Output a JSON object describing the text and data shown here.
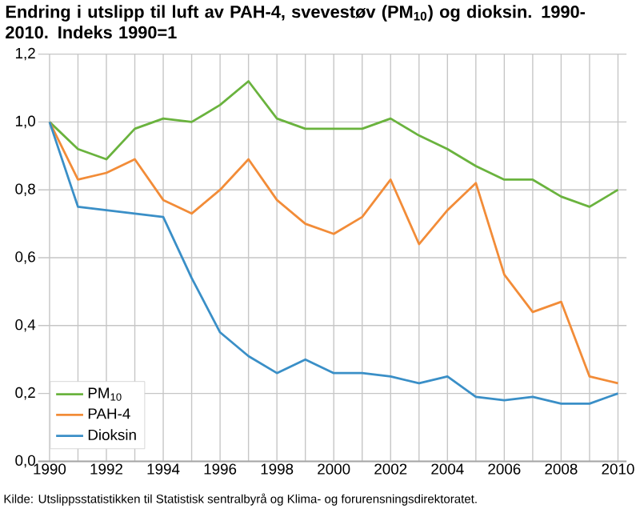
{
  "chart_data": {
    "type": "line",
    "title": "Endring i utslipp til luft av PAH-4, svevestøv (PM$_{10}$) og dioksin. 1990-2010. Indeks 1990=1",
    "x": [
      1990,
      1991,
      1992,
      1993,
      1994,
      1995,
      1996,
      1997,
      1998,
      1999,
      2000,
      2001,
      2002,
      2003,
      2004,
      2005,
      2006,
      2007,
      2008,
      2009,
      2010
    ],
    "series": [
      {
        "name": "PM$_{10}$",
        "color": "#6ab33e",
        "values": [
          1.0,
          0.92,
          0.89,
          0.98,
          1.01,
          1.0,
          1.05,
          1.12,
          1.01,
          0.98,
          0.98,
          0.98,
          1.01,
          0.96,
          0.92,
          0.87,
          0.83,
          0.83,
          0.78,
          0.75,
          0.8
        ]
      },
      {
        "name": "PAH-4",
        "color": "#f28c38",
        "values": [
          1.0,
          0.83,
          0.85,
          0.89,
          0.77,
          0.73,
          0.8,
          0.89,
          0.77,
          0.7,
          0.67,
          0.72,
          0.83,
          0.64,
          0.74,
          0.82,
          0.55,
          0.44,
          0.47,
          0.25,
          0.23
        ]
      },
      {
        "name": "Dioksin",
        "color": "#3a8fc7",
        "values": [
          1.0,
          0.75,
          0.74,
          0.73,
          0.72,
          0.54,
          0.38,
          0.31,
          0.26,
          0.3,
          0.26,
          0.26,
          0.25,
          0.23,
          0.25,
          0.19,
          0.18,
          0.19,
          0.17,
          0.17,
          0.2
        ]
      }
    ],
    "xlim": [
      1989.6,
      2010.3
    ],
    "xticks": [
      1990,
      {
        "value": 1991,
        "label": null
      },
      1992,
      {
        "value": 1993,
        "label": null
      },
      1994,
      {
        "value": 1995,
        "label": null
      },
      1996,
      {
        "value": 1997,
        "label": null
      },
      1998,
      {
        "value": 1999,
        "label": null
      },
      2000,
      {
        "value": 2001,
        "label": null
      },
      2002,
      {
        "value": 2003,
        "label": null
      },
      2004,
      {
        "value": 2005,
        "label": null
      },
      2006,
      {
        "value": 2007,
        "label": null
      },
      2008,
      {
        "value": 2009,
        "label": null
      },
      2010
    ],
    "ylim": [
      0,
      1.2
    ],
    "yticks": [
      {
        "value": 0,
        "label": "0,0"
      },
      {
        "value": 0.2,
        "label": "0,2"
      },
      {
        "value": 0.4,
        "label": "0,4"
      },
      {
        "value": 0.6,
        "label": "0,6"
      },
      {
        "value": 0.8,
        "label": "0,8"
      },
      {
        "value": 1.0,
        "label": "1,0"
      },
      {
        "value": 1.2,
        "label": "1,2"
      }
    ],
    "grid": true,
    "legend": "bottom left",
    "marker": "none",
    "line_style": "solid",
    "annotations": [
      "Kilde: Utslippsstatistikken til Statistisk sentralbyrå og Klima- og forurensningsdirektoratet."
    ]
  }
}
